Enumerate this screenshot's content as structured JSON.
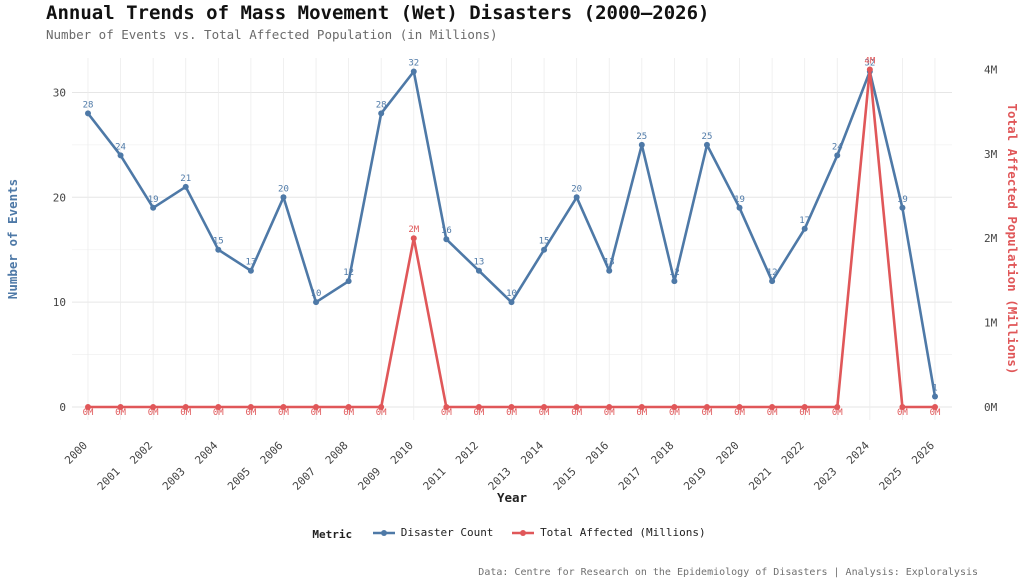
{
  "chart_data": {
    "type": "line",
    "title": "Annual Trends of Mass Movement (Wet) Disasters (2000–2026)",
    "subtitle": "Number of Events vs. Total Affected Population (in Millions)",
    "xlabel": "Year",
    "ylabel_left": "Number of Events",
    "ylabel_right": "Total Affected Population (Millions)",
    "caption": "Data: Centre for Research on the Epidemiology of Disasters | Analysis: Exploralysis",
    "x": [
      "2000",
      "2001",
      "2002",
      "2003",
      "2004",
      "2005",
      "2006",
      "2007",
      "2008",
      "2009",
      "2010",
      "2011",
      "2012",
      "2013",
      "2014",
      "2015",
      "2016",
      "2017",
      "2018",
      "2019",
      "2020",
      "2021",
      "2022",
      "2023",
      "2024",
      "2025",
      "2026"
    ],
    "ylim_left": [
      0,
      33
    ],
    "yticks_left": [
      0,
      10,
      20,
      30
    ],
    "ylim_right": [
      0,
      4.1
    ],
    "yticks_right": [
      0,
      1,
      2,
      3,
      4
    ],
    "yticklabels_right": [
      "0M",
      "1M",
      "2M",
      "3M",
      "4M"
    ],
    "grid": true,
    "legend_position": "bottom",
    "legend_title": "Metric",
    "series": [
      {
        "name": "Disaster Count",
        "axis": "left",
        "color": "#4e79a7",
        "values": [
          28,
          24,
          19,
          21,
          15,
          13,
          20,
          10,
          12,
          28,
          32,
          16,
          13,
          10,
          15,
          20,
          13,
          25,
          12,
          25,
          19,
          12,
          17,
          24,
          32,
          19,
          1
        ],
        "labels": [
          "28",
          "24",
          "19",
          "21",
          "15",
          "13",
          "20",
          "10",
          "12",
          "28",
          "32",
          "16",
          "13",
          "10",
          "15",
          "20",
          "13",
          "25",
          "12",
          "25",
          "19",
          "12",
          "17",
          "24",
          "32",
          "19",
          "1"
        ]
      },
      {
        "name": "Total Affected (Millions)",
        "axis": "right",
        "color": "#e05759",
        "values": [
          0,
          0,
          0,
          0,
          0,
          0,
          0,
          0,
          0,
          0,
          2,
          0,
          0,
          0,
          0,
          0,
          0,
          0,
          0,
          0,
          0,
          0,
          0,
          0,
          4,
          0,
          0
        ],
        "labels": [
          "0M",
          "0M",
          "0M",
          "0M",
          "0M",
          "0M",
          "0M",
          "0M",
          "0M",
          "0M",
          "2M",
          "0M",
          "0M",
          "0M",
          "0M",
          "0M",
          "0M",
          "0M",
          "0M",
          "0M",
          "0M",
          "0M",
          "0M",
          "0M",
          "4M",
          "0M",
          "0M"
        ]
      }
    ]
  }
}
